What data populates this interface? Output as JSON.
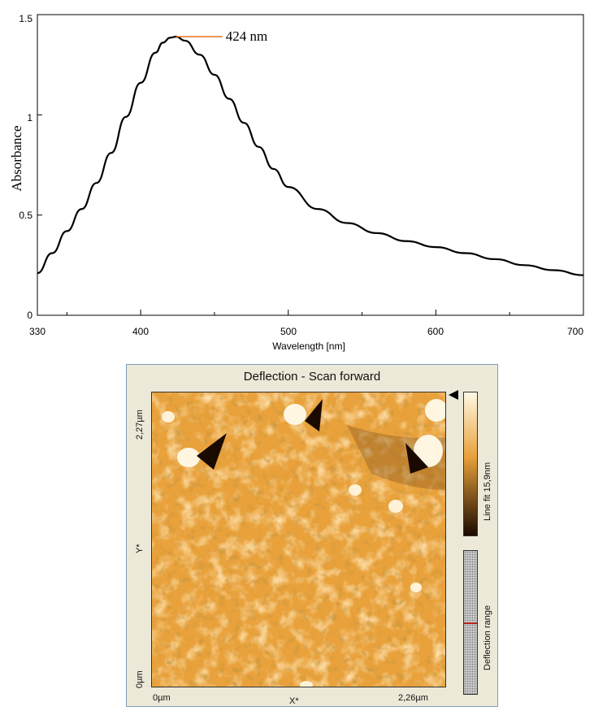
{
  "chart_data": [
    {
      "type": "line",
      "xlabel": "Wavelength [nm]",
      "ylabel": "Absorbance",
      "xlim": [
        330,
        700
      ],
      "ylim": [
        0,
        1.5
      ],
      "x_ticks": [
        "330",
        "400",
        "500",
        "600",
        "700"
      ],
      "y_ticks": [
        "0",
        "0.5",
        "1",
        "1.5"
      ],
      "annotation": {
        "text": "424 nm",
        "x": 424,
        "y": 1.39
      },
      "series": [
        {
          "x": [
            330,
            340,
            350,
            360,
            370,
            380,
            390,
            400,
            410,
            415,
            420,
            424,
            430,
            440,
            450,
            460,
            470,
            480,
            490,
            500,
            520,
            540,
            560,
            580,
            600,
            620,
            640,
            660,
            680,
            700
          ],
          "y": [
            0.21,
            0.31,
            0.42,
            0.53,
            0.66,
            0.81,
            0.99,
            1.16,
            1.31,
            1.36,
            1.385,
            1.39,
            1.37,
            1.3,
            1.2,
            1.08,
            0.96,
            0.84,
            0.73,
            0.64,
            0.53,
            0.46,
            0.41,
            0.37,
            0.34,
            0.31,
            0.28,
            0.25,
            0.225,
            0.2
          ]
        }
      ]
    },
    {
      "type": "heatmap",
      "title": "Deflection - Scan forward",
      "xlabel": "X*",
      "ylabel": "Y*",
      "x_ticks": [
        "0µm",
        "2,26µm"
      ],
      "y_ticks": [
        "0µm",
        "2,27µm"
      ],
      "colorbar_label": "Line fit 15,9nm",
      "range_label": "Deflection range",
      "colors": {
        "bright": "#fff8e4",
        "mid": "#e8a13b",
        "dark": "#1a0a00"
      }
    }
  ]
}
